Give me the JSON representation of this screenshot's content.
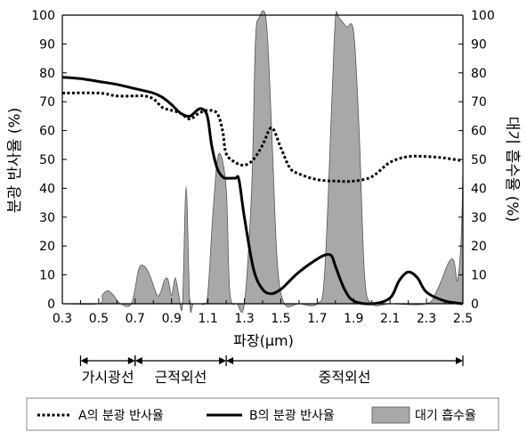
{
  "chart_data": {
    "type": "line",
    "ylabel_left": "분광 반사율 (%)",
    "ylabel_right": "대기 흡수율 (%)",
    "xlabel": "파장(μm)",
    "xlim": [
      0.3,
      2.5
    ],
    "ylim": [
      0,
      100
    ],
    "x_ticks": [
      "0.3",
      "0.5",
      "0.7",
      "0.9",
      "1.1",
      "1.3",
      "1.5",
      "1.7",
      "1.9",
      "2.1",
      "2.3",
      "2.5"
    ],
    "y_ticks": [
      "0",
      "10",
      "20",
      "30",
      "40",
      "50",
      "60",
      "70",
      "80",
      "90",
      "100"
    ],
    "series": [
      {
        "name": "A의 분광 반사율",
        "style": "dotted",
        "color": "#000000",
        "x": [
          0.3,
          0.5,
          0.6,
          0.7,
          0.75,
          0.8,
          0.85,
          0.9,
          0.95,
          1.0,
          1.05,
          1.1,
          1.15,
          1.18,
          1.2,
          1.25,
          1.3,
          1.35,
          1.4,
          1.45,
          1.5,
          1.55,
          1.6,
          1.7,
          1.8,
          1.9,
          2.0,
          2.1,
          2.2,
          2.3,
          2.4,
          2.5
        ],
        "y": [
          73,
          73,
          72,
          72,
          72,
          71,
          68,
          67,
          66,
          64,
          66,
          67,
          66,
          60,
          52,
          49,
          48,
          50,
          55,
          61,
          54,
          47,
          45,
          43,
          42.5,
          42.5,
          44,
          49,
          51,
          51,
          50.5,
          49.5
        ]
      },
      {
        "name": "B의 분광 반사율",
        "style": "solid",
        "color": "#000000",
        "x": [
          0.3,
          0.4,
          0.5,
          0.6,
          0.7,
          0.8,
          0.85,
          0.9,
          0.95,
          1.0,
          1.05,
          1.08,
          1.1,
          1.12,
          1.15,
          1.18,
          1.2,
          1.25,
          1.27,
          1.3,
          1.35,
          1.4,
          1.45,
          1.5,
          1.55,
          1.6,
          1.7,
          1.75,
          1.78,
          1.8,
          1.85,
          1.9,
          2.0,
          2.1,
          2.15,
          2.2,
          2.25,
          2.3,
          2.4,
          2.5
        ],
        "y": [
          78.5,
          78,
          77,
          76,
          74.5,
          73,
          71.5,
          69,
          66,
          65,
          67.5,
          67,
          64,
          55,
          47,
          44,
          43.5,
          43.5,
          43,
          30,
          12,
          5,
          3.5,
          5,
          8,
          11,
          15.5,
          17,
          16.5,
          13,
          5,
          1,
          0,
          2,
          8,
          11,
          9,
          4,
          1,
          0
        ]
      },
      {
        "name": "대기 흡수율",
        "style": "area",
        "color": "#a8a8a8",
        "x": [
          0.3,
          0.5,
          0.52,
          0.55,
          0.58,
          0.62,
          0.68,
          0.72,
          0.75,
          0.78,
          0.82,
          0.84,
          0.86,
          0.88,
          0.9,
          0.92,
          0.94,
          0.96,
          0.98,
          1.0,
          1.02,
          1.06,
          1.08,
          1.1,
          1.13,
          1.16,
          1.2,
          1.22,
          1.26,
          1.3,
          1.34,
          1.36,
          1.38,
          1.42,
          1.45,
          1.48,
          1.52,
          1.6,
          1.7,
          1.74,
          1.78,
          1.8,
          1.82,
          1.86,
          1.9,
          1.93,
          1.96,
          2.0,
          2.1,
          2.3,
          2.36,
          2.42,
          2.45,
          2.47,
          2.49,
          2.5
        ],
        "y": [
          0,
          0,
          3,
          4.5,
          3,
          0,
          0,
          12,
          13,
          10,
          3,
          4,
          8,
          8.5,
          3,
          9,
          3,
          0,
          40.5,
          0,
          0,
          0,
          0,
          4,
          34,
          52,
          40,
          4,
          0,
          0,
          40,
          90,
          99,
          98,
          60,
          15,
          0,
          0,
          0,
          10,
          70,
          99,
          99,
          96,
          94,
          60,
          10,
          0,
          0,
          0,
          5,
          14,
          15,
          8,
          22,
          46
        ]
      }
    ],
    "brackets": [
      {
        "label": "가시광선",
        "from": 0.4,
        "to": 0.7
      },
      {
        "label": "근적외선",
        "from": 0.7,
        "to": 1.2
      },
      {
        "label": "중적외선",
        "from": 1.2,
        "to": 2.5
      }
    ],
    "legend": {
      "position": "bottom",
      "items": [
        "A의 분광 반사율",
        "B의 분광 반사율",
        "대기 흡수율"
      ]
    }
  }
}
